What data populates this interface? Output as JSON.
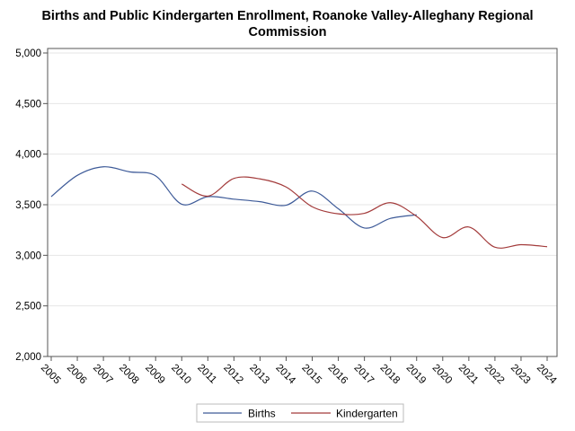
{
  "chart_data": {
    "type": "line",
    "title_line1": "Births and Public Kindergarten Enrollment, Roanoke Valley-Alleghany Regional",
    "title_line2": "Commission",
    "xlabel": "",
    "ylabel": "",
    "x": [
      2005,
      2006,
      2007,
      2008,
      2009,
      2010,
      2011,
      2012,
      2013,
      2014,
      2015,
      2016,
      2017,
      2018,
      2019,
      2020,
      2021,
      2022,
      2023,
      2024
    ],
    "ylim": [
      2000,
      5000
    ],
    "yticks": [
      2000,
      2500,
      3000,
      3500,
      4000,
      4500,
      5000
    ],
    "ytick_labels": [
      "2,000",
      "2,500",
      "3,000",
      "3,500",
      "4,000",
      "4,500",
      "5,000"
    ],
    "grid": "horizontal",
    "legend_position": "bottom",
    "series": [
      {
        "name": "Births",
        "color": "#3d5a98",
        "x": [
          2005,
          2006,
          2007,
          2008,
          2009,
          2010,
          2011,
          2012,
          2013,
          2014,
          2015,
          2016,
          2017,
          2018,
          2019
        ],
        "values": [
          3580,
          3790,
          3875,
          3825,
          3785,
          3505,
          3580,
          3555,
          3530,
          3495,
          3635,
          3460,
          3270,
          3365,
          3400
        ]
      },
      {
        "name": "Kindergarten",
        "color": "#a33b3b",
        "x": [
          2010,
          2011,
          2012,
          2013,
          2014,
          2015,
          2016,
          2017,
          2018,
          2019,
          2020,
          2021,
          2022,
          2023,
          2024
        ],
        "values": [
          3705,
          3585,
          3760,
          3755,
          3675,
          3480,
          3410,
          3415,
          3520,
          3385,
          3175,
          3280,
          3080,
          3105,
          3085
        ]
      }
    ]
  }
}
